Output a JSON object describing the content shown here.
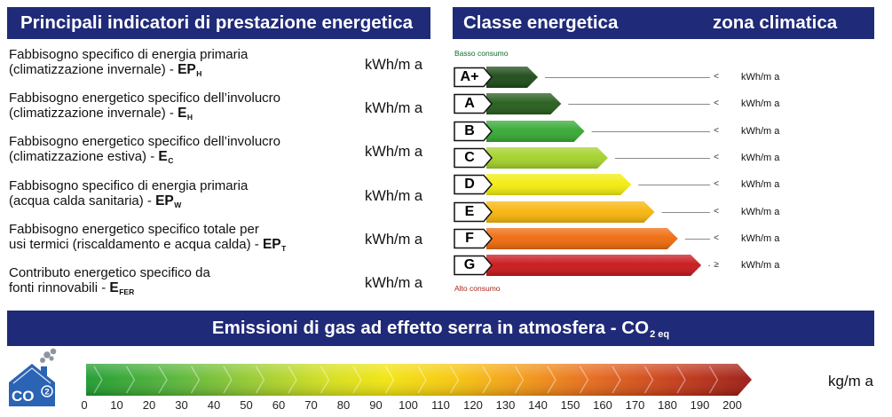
{
  "indicators": {
    "title": "Principali indicatori di prestazione energetica",
    "rows": [
      {
        "line1": "Fabbisogno specifico di energia primaria",
        "line2": "(climatizzazione invernale) - ",
        "symbol": "EP",
        "sub": "H",
        "unit": "kWh/m a"
      },
      {
        "line1": "Fabbisogno energetico specifico dell’involucro",
        "line2": "(climatizzazione invernale) - ",
        "symbol": "E",
        "sub": "H",
        "unit": "kWh/m a"
      },
      {
        "line1": "Fabbisogno energetico specifico dell’involucro",
        "line2": "(climatizzazione estiva) - ",
        "symbol": "E",
        "sub": "C",
        "unit": "kWh/m a"
      },
      {
        "line1": "Fabbisogno specifico di energia primaria",
        "line2": "(acqua calda sanitaria) - ",
        "symbol": "EP",
        "sub": "W",
        "unit": "kWh/m a"
      },
      {
        "line1": "Fabbisogno energetico specifico totale per",
        "line2": "usi termici (riscaldamento e acqua calda) - ",
        "symbol": "EP",
        "sub": "T",
        "unit": "kWh/m a"
      },
      {
        "line1": "Contributo energetico specifico da",
        "line2": "fonti rinnovabili - ",
        "symbol": "E",
        "sub": "FER",
        "unit": "kWh/m a"
      }
    ]
  },
  "energy_class": {
    "title": "Classe energetica",
    "zone_title": "zona climatica",
    "low_label": "Basso consumo",
    "high_label": "Alto consumo",
    "classes": [
      {
        "label": "A+",
        "color": "#1c4a17",
        "comparator": "<",
        "unit": "kWh/m a"
      },
      {
        "label": "A",
        "color": "#255c1b",
        "comparator": "<",
        "unit": "kWh/m a"
      },
      {
        "label": "B",
        "color": "#35a833",
        "comparator": "<",
        "unit": "kWh/m a"
      },
      {
        "label": "C",
        "color": "#a3d12a",
        "comparator": "<",
        "unit": "kWh/m a"
      },
      {
        "label": "D",
        "color": "#f2ec0c",
        "comparator": "<",
        "unit": "kWh/m a"
      },
      {
        "label": "E",
        "color": "#f7b50c",
        "comparator": "<",
        "unit": "kWh/m a"
      },
      {
        "label": "F",
        "color": "#ee6a0c",
        "comparator": "<",
        "unit": "kWh/m a"
      },
      {
        "label": "G",
        "color": "#c8171b",
        "comparator": "≥",
        "unit": "kWh/m a"
      }
    ]
  },
  "emissions": {
    "title": "Emissioni di gas ad effetto serra in atmosfera - CO",
    "title_sub": "2 eq",
    "icon": "co2-house-icon",
    "icon_text": {
      "main": "CO",
      "sub": "2"
    },
    "scale_ticks": [
      "0",
      "10",
      "20",
      "30",
      "40",
      "50",
      "60",
      "70",
      "80",
      "90",
      "100",
      "110",
      "120",
      "130",
      "140",
      "150",
      "160",
      "170",
      "180",
      "190",
      "200"
    ],
    "unit": "kg/m a"
  },
  "colors": {
    "header_background": "#1f2a78",
    "low_consumption_text": "#0e6b2c",
    "high_consumption_text": "#a8241c",
    "co2_icon": "#2b63b5"
  }
}
